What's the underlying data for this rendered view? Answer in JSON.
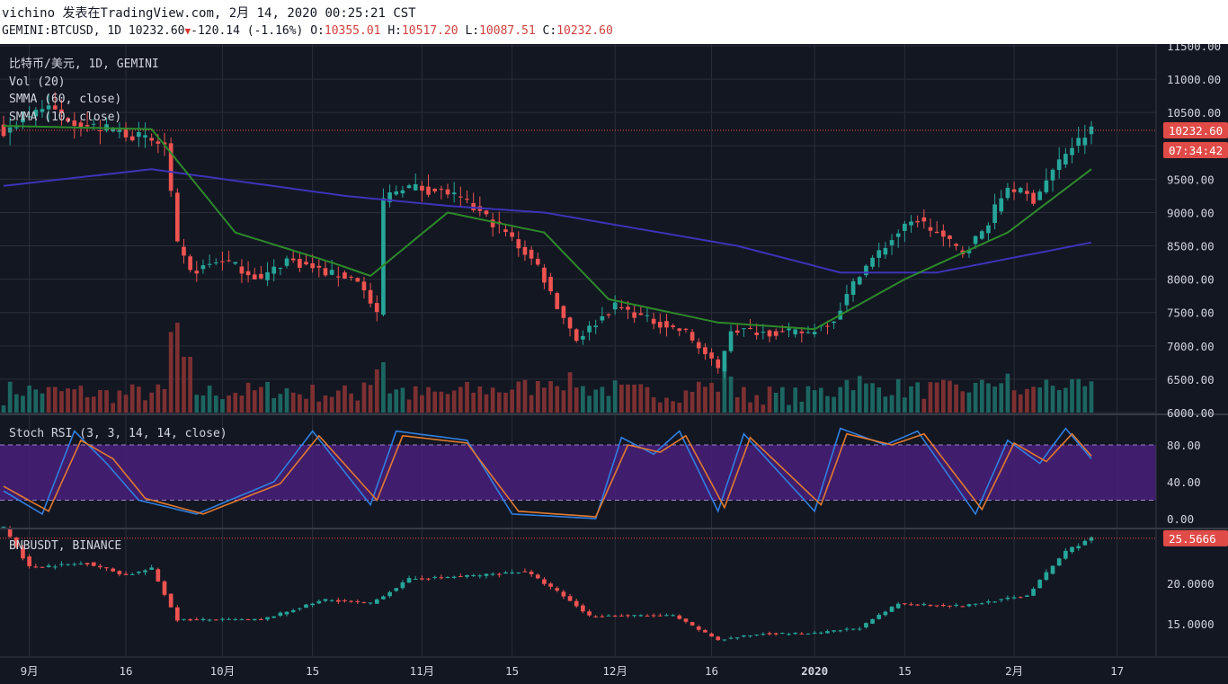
{
  "header": {
    "author": "vichino",
    "published_on": "发表在TradingView.com,",
    "date": "2月 14, 2020 00:25:21 CST",
    "symbol": "GEMINI:BTCUSD",
    "interval": "1D",
    "last": "10232.60",
    "change": "-120.14",
    "change_pct": "(-1.16%)",
    "open": "10355.01",
    "high": "10517.20",
    "low": "10087.51",
    "close": "10232.60"
  },
  "panes": {
    "main": {
      "title": "比特币/美元, 1D, GEMINI",
      "legends": [
        "Vol (20)",
        "SMMA (60, close)",
        "SMMA (10, close)"
      ],
      "price_tag": "10232.60",
      "countdown_tag": "07:34:42"
    },
    "stoch": {
      "title": "Stoch RSI (3, 3, 14, 14, close)"
    },
    "bnb": {
      "title": "BNBUSDT, BINANCE",
      "price_tag": "25.5666"
    }
  },
  "colors": {
    "bg": "#131722",
    "up": "#26a69a",
    "down": "#ef5350",
    "grid": "#2a2e39",
    "smma60": "#3d33b8",
    "smma10": "#2d8a2a",
    "k": "#2f7fe0",
    "d": "#e07a2f",
    "axis_text": "#d1d4dc",
    "price_tag": "#e04b47"
  },
  "chart_data": [
    {
      "type": "candlestick",
      "title": "比特币/美元, 1D, GEMINI",
      "x_ticks": [
        "9月",
        "16",
        "10月",
        "15",
        "11月",
        "15",
        "12月",
        "16",
        "2020",
        "15",
        "2月",
        "17"
      ],
      "y_ticks": [
        "6000.00",
        "6500.00",
        "7000.00",
        "7500.00",
        "8000.00",
        "8500.00",
        "9000.00",
        "9500.00",
        "10000.00",
        "10500.00",
        "11000.00",
        "11500.00"
      ],
      "ylim": [
        6000,
        11500
      ],
      "close_key_points": [
        [
          "Aug 28",
          10200
        ],
        [
          "Sep 3",
          10600
        ],
        [
          "Sep 10",
          10300
        ],
        [
          "Sep 16",
          10200
        ],
        [
          "Sep 22",
          10000
        ],
        [
          "Sep 24",
          8500
        ],
        [
          "Sep 26",
          8100
        ],
        [
          "Oct 1",
          8300
        ],
        [
          "Oct 7",
          8000
        ],
        [
          "Oct 11",
          8300
        ],
        [
          "Oct 17",
          8100
        ],
        [
          "Oct 22",
          8000
        ],
        [
          "Oct 25",
          7450
        ],
        [
          "Oct 26",
          9200
        ],
        [
          "Oct 29",
          9400
        ],
        [
          "Nov 5",
          9300
        ],
        [
          "Nov 10",
          9000
        ],
        [
          "Nov 14",
          8700
        ],
        [
          "Nov 19",
          8200
        ],
        [
          "Nov 22",
          7600
        ],
        [
          "Nov 25",
          7100
        ],
        [
          "Dec 1",
          7600
        ],
        [
          "Dec 6",
          7400
        ],
        [
          "Dec 12",
          7200
        ],
        [
          "Dec 17",
          6650
        ],
        [
          "Dec 19",
          7250
        ],
        [
          "Dec 25",
          7200
        ],
        [
          "Dec 31",
          7200
        ],
        [
          "Jan 4",
          7400
        ],
        [
          "Jan 8",
          8100
        ],
        [
          "Jan 14",
          8700
        ],
        [
          "Jan 17",
          8900
        ],
        [
          "Jan 24",
          8400
        ],
        [
          "Jan 27",
          8700
        ],
        [
          "Jan 31",
          9400
        ],
        [
          "Feb 4",
          9200
        ],
        [
          "Feb 9",
          9900
        ],
        [
          "Feb 13",
          10232.6
        ]
      ],
      "series": [
        {
          "name": "SMMA (60, close)",
          "points": [
            [
              "Aug 28",
              9400
            ],
            [
              "Sep 20",
              9650
            ],
            [
              "Oct 20",
              9250
            ],
            [
              "Nov 5",
              9100
            ],
            [
              "Nov 20",
              9000
            ],
            [
              "Dec 20",
              8500
            ],
            [
              "Jan 5",
              8100
            ],
            [
              "Jan 20",
              8100
            ],
            [
              "Feb 13",
              8550
            ]
          ]
        },
        {
          "name": "SMMA (10, close)",
          "points": [
            [
              "Aug 28",
              10300
            ],
            [
              "Sep 20",
              10250
            ],
            [
              "Oct 3",
              8700
            ],
            [
              "Oct 18",
              8250
            ],
            [
              "Oct 24",
              8050
            ],
            [
              "Nov 5",
              9000
            ],
            [
              "Nov 20",
              8700
            ],
            [
              "Nov 30",
              7700
            ],
            [
              "Dec 17",
              7350
            ],
            [
              "Jan 1",
              7250
            ],
            [
              "Jan 15",
              8000
            ],
            [
              "Jan 31",
              8700
            ],
            [
              "Feb 13",
              9650
            ]
          ]
        }
      ],
      "volume_note": "Vol (20) bars, largest near Sep 24"
    },
    {
      "type": "line",
      "title": "Stoch RSI (3, 3, 14, 14, close)",
      "y_ticks": [
        "0.00",
        "40.00",
        "80.00"
      ],
      "ylim": [
        0,
        100
      ],
      "band": [
        20,
        80
      ],
      "series": [
        {
          "name": "K",
          "points": [
            [
              "Aug 28",
              30
            ],
            [
              "Sep 3",
              5
            ],
            [
              "Sep 8",
              95
            ],
            [
              "Sep 13",
              60
            ],
            [
              "Sep 18",
              20
            ],
            [
              "Sep 27",
              5
            ],
            [
              "Oct 9",
              40
            ],
            [
              "Oct 15",
              95
            ],
            [
              "Oct 24",
              15
            ],
            [
              "Oct 28",
              95
            ],
            [
              "Nov 8",
              85
            ],
            [
              "Nov 15",
              5
            ],
            [
              "Nov 28",
              0
            ],
            [
              "Dec 2",
              88
            ],
            [
              "Dec 7",
              70
            ],
            [
              "Dec 11",
              95
            ],
            [
              "Dec 17",
              8
            ],
            [
              "Dec 21",
              92
            ],
            [
              "Jan 1",
              8
            ],
            [
              "Jan 5",
              98
            ],
            [
              "Jan 12",
              80
            ],
            [
              "Jan 17",
              95
            ],
            [
              "Jan 26",
              5
            ],
            [
              "Jan 31",
              85
            ],
            [
              "Feb 5",
              60
            ],
            [
              "Feb 9",
              98
            ],
            [
              "Feb 13",
              65
            ]
          ]
        },
        {
          "name": "D",
          "points": [
            [
              "Aug 28",
              35
            ],
            [
              "Sep 4",
              8
            ],
            [
              "Sep 9",
              85
            ],
            [
              "Sep 14",
              65
            ],
            [
              "Sep 19",
              22
            ],
            [
              "Sep 28",
              5
            ],
            [
              "Oct 10",
              38
            ],
            [
              "Oct 16",
              90
            ],
            [
              "Oct 25",
              20
            ],
            [
              "Oct 29",
              90
            ],
            [
              "Nov 8",
              82
            ],
            [
              "Nov 16",
              8
            ],
            [
              "Nov 28",
              2
            ],
            [
              "Dec 3",
              80
            ],
            [
              "Dec 8",
              72
            ],
            [
              "Dec 12",
              90
            ],
            [
              "Dec 18",
              12
            ],
            [
              "Dec 22",
              88
            ],
            [
              "Jan 2",
              15
            ],
            [
              "Jan 6",
              92
            ],
            [
              "Jan 13",
              80
            ],
            [
              "Jan 18",
              92
            ],
            [
              "Jan 27",
              10
            ],
            [
              "Feb 1",
              82
            ],
            [
              "Feb 6",
              62
            ],
            [
              "Feb 10",
              92
            ],
            [
              "Feb 13",
              68
            ]
          ]
        }
      ]
    },
    {
      "type": "candlestick",
      "title": "BNBUSDT, BINANCE",
      "y_ticks": [
        "15.0000",
        "20.0000",
        "25.5666"
      ],
      "ylim": [
        11,
        28
      ],
      "close_key_points": [
        [
          "Aug 28",
          27
        ],
        [
          "Sep 1",
          22
        ],
        [
          "Sep 10",
          22.5
        ],
        [
          "Sep 16",
          21
        ],
        [
          "Sep 20",
          21.8
        ],
        [
          "Sep 24",
          15.5
        ],
        [
          "Oct 7",
          15.5
        ],
        [
          "Oct 17",
          18
        ],
        [
          "Oct 24",
          17.5
        ],
        [
          "Oct 30",
          20.5
        ],
        [
          "Nov 10",
          21
        ],
        [
          "Nov 17",
          21.5
        ],
        [
          "Nov 22",
          19
        ],
        [
          "Nov 27",
          16
        ],
        [
          "Dec 10",
          16
        ],
        [
          "Dec 17",
          13
        ],
        [
          "Dec 24",
          13.8
        ],
        [
          "Jan 1",
          13.8
        ],
        [
          "Jan 8",
          14.5
        ],
        [
          "Jan 14",
          17.5
        ],
        [
          "Jan 24",
          17.2
        ],
        [
          "Feb 3",
          18.5
        ],
        [
          "Feb 9",
          24
        ],
        [
          "Feb 13",
          25.5666
        ]
      ]
    }
  ]
}
